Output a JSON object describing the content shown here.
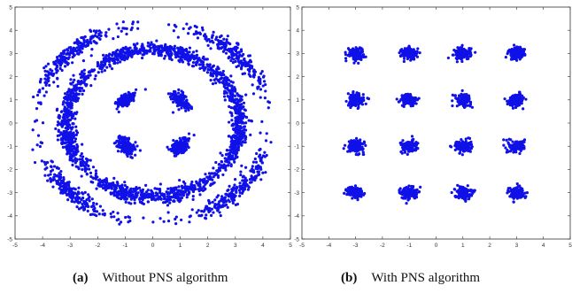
{
  "chart_data": [
    {
      "type": "scatter",
      "title": "",
      "xlabel": "",
      "ylabel": "",
      "xlim": [
        -5,
        5
      ],
      "ylim": [
        -5,
        5
      ],
      "xticks": [
        "-5",
        "-4",
        "-3",
        "-2",
        "-1",
        "0",
        "1",
        "2",
        "3",
        "4",
        "5"
      ],
      "yticks": [
        "5",
        "4",
        "3",
        "2",
        "1",
        "0",
        "-1",
        "-2",
        "-3",
        "-4",
        "-5"
      ],
      "grid": false,
      "series": [
        {
          "color": "#1010e8",
          "clusters": [
            {
              "x": -1,
              "y": 1
            },
            {
              "x": 1,
              "y": 1
            },
            {
              "x": -1,
              "y": -1
            },
            {
              "x": 1,
              "y": -1
            },
            {
              "x": -3,
              "y": 3
            },
            {
              "x": -1,
              "y": 3
            },
            {
              "x": 1,
              "y": 3
            },
            {
              "x": 3,
              "y": 3
            },
            {
              "x": -3,
              "y": 1
            },
            {
              "x": 3,
              "y": 1
            },
            {
              "x": -3,
              "y": -1
            },
            {
              "x": 3,
              "y": -1
            },
            {
              "x": -3,
              "y": -3
            },
            {
              "x": -1,
              "y": -3
            },
            {
              "x": 1,
              "y": -3
            },
            {
              "x": 3,
              "y": -3
            }
          ]
        }
      ]
    },
    {
      "type": "scatter",
      "title": "",
      "xlabel": "",
      "ylabel": "",
      "xlim": [
        -5,
        5
      ],
      "ylim": [
        -5,
        5
      ],
      "xticks": [
        "-5",
        "-4",
        "-3",
        "-2",
        "-1",
        "0",
        "1",
        "2",
        "3",
        "4",
        "5"
      ],
      "yticks": [
        "5",
        "4",
        "3",
        "2",
        "1",
        "0",
        "-1",
        "-2",
        "-3",
        "-4",
        "-5"
      ],
      "grid": false,
      "series": [
        {
          "color": "#1010e8",
          "clusters": [
            {
              "x": -3,
              "y": 3
            },
            {
              "x": -1,
              "y": 3
            },
            {
              "x": 1,
              "y": 3
            },
            {
              "x": 3,
              "y": 3
            },
            {
              "x": -3,
              "y": 1
            },
            {
              "x": -1,
              "y": 1
            },
            {
              "x": 1,
              "y": 1
            },
            {
              "x": 3,
              "y": 1
            },
            {
              "x": -3,
              "y": -1
            },
            {
              "x": -1,
              "y": -1
            },
            {
              "x": 1,
              "y": -1
            },
            {
              "x": 3,
              "y": -1
            },
            {
              "x": -3,
              "y": -3
            },
            {
              "x": -1,
              "y": -3
            },
            {
              "x": 1,
              "y": -3
            },
            {
              "x": 3,
              "y": -3
            }
          ]
        }
      ]
    }
  ],
  "captions": [
    {
      "tag": "(a)",
      "text": "Without PNS algorithm"
    },
    {
      "tag": "(b)",
      "text": "With PNS algorithm"
    }
  ]
}
